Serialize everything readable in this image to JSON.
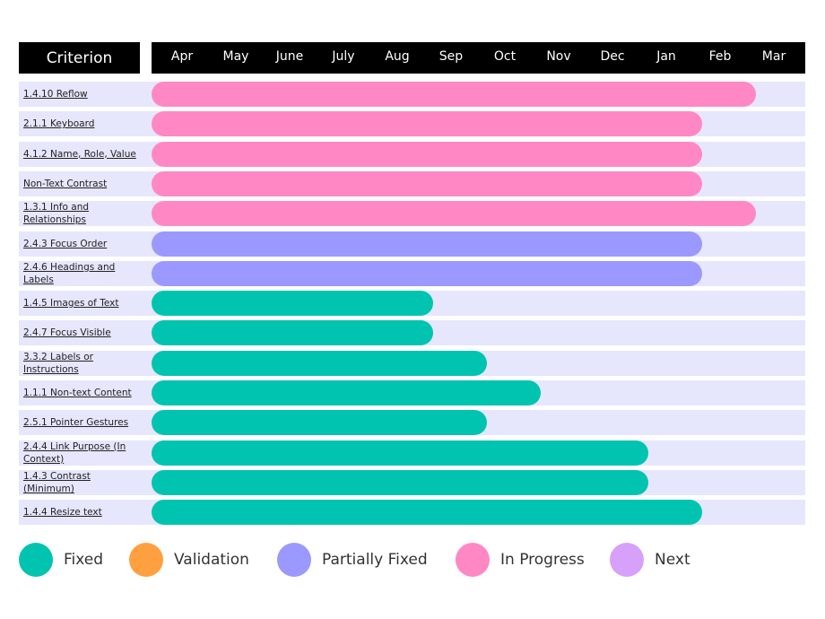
{
  "chart_data": {
    "type": "gantt",
    "header_label": "Criterion",
    "months": [
      "Apr",
      "May",
      "June",
      "July",
      "Aug",
      "Sep",
      "Oct",
      "Nov",
      "Dec",
      "Jan",
      "Feb",
      "Mar"
    ],
    "rows": [
      {
        "label": "1.4.10 Reflow",
        "start": "Apr",
        "end": "Feb",
        "status": "In Progress"
      },
      {
        "label": "2.1.1 Keyboard",
        "start": "Apr",
        "end": "Jan",
        "status": "In Progress"
      },
      {
        "label": "4.1.2 Name, Role, Value",
        "start": "Apr",
        "end": "Jan",
        "status": "In Progress"
      },
      {
        "label": "Non-Text Contrast",
        "start": "Apr",
        "end": "Jan",
        "status": "In Progress"
      },
      {
        "label": "1.3.1 Info and Relationships",
        "start": "Apr",
        "end": "Feb",
        "status": "In Progress"
      },
      {
        "label": "2.4.3 Focus Order",
        "start": "Apr",
        "end": "Jan",
        "status": "Partially Fixed"
      },
      {
        "label": "2.4.6 Headings and Labels",
        "start": "Apr",
        "end": "Jan",
        "status": "Partially Fixed"
      },
      {
        "label": "1.4.5 Images of Text",
        "start": "Apr",
        "end": "Aug",
        "status": "Fixed"
      },
      {
        "label": "2.4.7 Focus Visible",
        "start": "Apr",
        "end": "Aug",
        "status": "Fixed"
      },
      {
        "label": "3.3.2 Labels or Instructions",
        "start": "Apr",
        "end": "Sep",
        "status": "Fixed"
      },
      {
        "label": "1.1.1 Non-text Content",
        "start": "Apr",
        "end": "Oct",
        "status": "Fixed"
      },
      {
        "label": "2.5.1 Pointer Gestures",
        "start": "Apr",
        "end": "Sep",
        "status": "Fixed"
      },
      {
        "label": "2.4.4 Link Purpose (In Context)",
        "start": "Apr",
        "end": "Dec",
        "status": "Fixed"
      },
      {
        "label": "1.4.3 Contrast (Minimum)",
        "start": "Apr",
        "end": "Dec",
        "status": "Fixed"
      },
      {
        "label": "1.4.4 Resize text",
        "start": "Apr",
        "end": "Jan",
        "status": "Fixed"
      }
    ],
    "legend": [
      {
        "name": "Fixed",
        "color": "#00c4b0"
      },
      {
        "name": "Validation",
        "color": "#ffa040"
      },
      {
        "name": "Partially Fixed",
        "color": "#9b99ff"
      },
      {
        "name": "In Progress",
        "color": "#ff88c4"
      },
      {
        "name": "Next",
        "color": "#d6a0fb"
      }
    ],
    "legend_placement": "bottom"
  }
}
